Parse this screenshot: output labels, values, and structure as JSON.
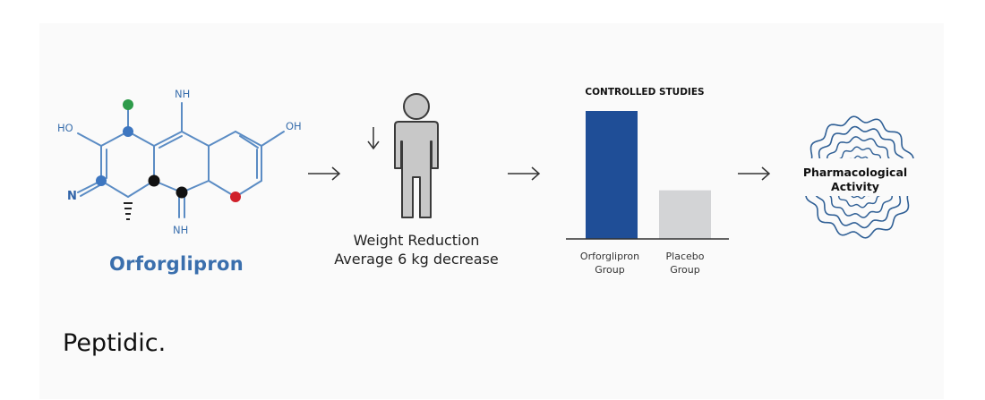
{
  "molecule": {
    "name": "Orforglipron",
    "atoms": {
      "nh_top": "NH",
      "ho": "HO",
      "oh": "OH",
      "n": "N",
      "nh_bottom": "NH"
    }
  },
  "step_weight": {
    "caption_line1": "Weight Reduction",
    "caption_line2": "Average 6 kg decrease"
  },
  "chart_data": {
    "type": "bar",
    "title": "CONTROLLED STUDIES",
    "categories": [
      "Orforglipron Group",
      "Placebo Group"
    ],
    "category_lines": [
      [
        "Orforglipron",
        "Group"
      ],
      [
        "Placebo",
        "Group"
      ]
    ],
    "values": [
      100,
      38
    ],
    "ylim": [
      0,
      100
    ],
    "colors": [
      "#1f4e97",
      "#d3d4d6"
    ],
    "grid": false
  },
  "step_activity": {
    "label_line1": "Pharmacological",
    "label_line2": "Activity"
  },
  "brand": {
    "name": "Peptidic."
  },
  "colors": {
    "molecule": "#3a6fad",
    "bar_primary": "#1f4e97",
    "bar_placebo": "#d3d4d6",
    "arrow": "#333333"
  }
}
